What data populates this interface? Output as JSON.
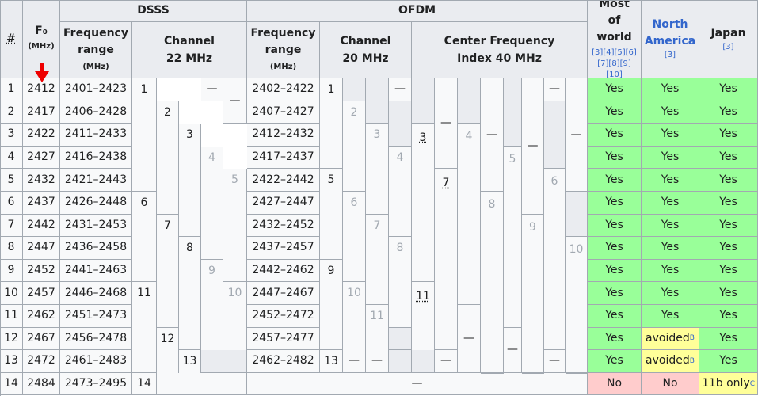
{
  "headers": {
    "num": "#",
    "f0": "F₀",
    "f0_unit": "(MHz)",
    "dsss": "DSSS",
    "ofdm": "OFDM",
    "freq_range": "Frequency range",
    "freq_unit": "(MHz)",
    "chan22": "Channel 22 MHz",
    "chan20": "Channel 20 MHz",
    "cfi40": "Center Frequency Index 40 MHz",
    "most_world": "Most of world",
    "most_world_refs": "[3][4][5][6] [7][8][9][10]",
    "north_america": "North America",
    "na_ref": "[3]",
    "japan": "Japan",
    "japan_ref": "[3]"
  },
  "dash": "—",
  "rows": [
    {
      "num": "1",
      "f0": "2412",
      "dsss_range": "2401–2423",
      "ofdm_range": "2402–2422",
      "world": "Yes",
      "na": "Yes",
      "japan": "Yes"
    },
    {
      "num": "2",
      "f0": "2417",
      "dsss_range": "2406–2428",
      "ofdm_range": "2407–2427",
      "world": "Yes",
      "na": "Yes",
      "japan": "Yes"
    },
    {
      "num": "3",
      "f0": "2422",
      "dsss_range": "2411–2433",
      "ofdm_range": "2412–2432",
      "world": "Yes",
      "na": "Yes",
      "japan": "Yes"
    },
    {
      "num": "4",
      "f0": "2427",
      "dsss_range": "2416–2438",
      "ofdm_range": "2417–2437",
      "world": "Yes",
      "na": "Yes",
      "japan": "Yes"
    },
    {
      "num": "5",
      "f0": "2432",
      "dsss_range": "2421–2443",
      "ofdm_range": "2422–2442",
      "world": "Yes",
      "na": "Yes",
      "japan": "Yes"
    },
    {
      "num": "6",
      "f0": "2437",
      "dsss_range": "2426–2448",
      "ofdm_range": "2427–2447",
      "world": "Yes",
      "na": "Yes",
      "japan": "Yes"
    },
    {
      "num": "7",
      "f0": "2442",
      "dsss_range": "2431–2453",
      "ofdm_range": "2432–2452",
      "world": "Yes",
      "na": "Yes",
      "japan": "Yes"
    },
    {
      "num": "8",
      "f0": "2447",
      "dsss_range": "2436–2458",
      "ofdm_range": "2437–2457",
      "world": "Yes",
      "na": "Yes",
      "japan": "Yes"
    },
    {
      "num": "9",
      "f0": "2452",
      "dsss_range": "2441–2463",
      "ofdm_range": "2442–2462",
      "world": "Yes",
      "na": "Yes",
      "japan": "Yes"
    },
    {
      "num": "10",
      "f0": "2457",
      "dsss_range": "2446–2468",
      "ofdm_range": "2447–2467",
      "world": "Yes",
      "na": "Yes",
      "japan": "Yes"
    },
    {
      "num": "11",
      "f0": "2462",
      "dsss_range": "2451–2473",
      "ofdm_range": "2452–2472",
      "world": "Yes",
      "na": "Yes",
      "japan": "Yes"
    },
    {
      "num": "12",
      "f0": "2467",
      "dsss_range": "2456–2478",
      "ofdm_range": "2457–2477",
      "world": "Yes",
      "na": "avoided",
      "na_note": "B",
      "japan": "Yes"
    },
    {
      "num": "13",
      "f0": "2472",
      "dsss_range": "2461–2483",
      "ofdm_range": "2462–2482",
      "world": "Yes",
      "na": "avoided",
      "na_note": "B",
      "japan": "Yes"
    },
    {
      "num": "14",
      "f0": "2484",
      "dsss_range": "2473–2495",
      "ofdm_range": null,
      "world": "No",
      "na": "No",
      "japan": "11b only",
      "japan_note": "C"
    }
  ],
  "dsss_channels": [
    "1",
    "2",
    "3",
    "4",
    "5",
    "6",
    "7",
    "8",
    "9",
    "10",
    "11",
    "12",
    "13",
    "14"
  ],
  "ofdm20_channels": [
    "1",
    "2",
    "3",
    "4",
    "5",
    "6",
    "7",
    "8",
    "9",
    "10",
    "11",
    "12",
    "13"
  ],
  "cfi40_channels": [
    "3",
    "4",
    "5",
    "6",
    "7",
    "8",
    "9",
    "10",
    "11"
  ],
  "colors": {
    "yes": "#99ff99",
    "avoided": "#ffff99",
    "no": "#ffcccc",
    "header": "#eaecf0",
    "body": "#f8f9fa",
    "arrow": "#ee0000",
    "link": "#3366cc"
  },
  "annotation": {
    "arrow": "red-down-arrow"
  }
}
